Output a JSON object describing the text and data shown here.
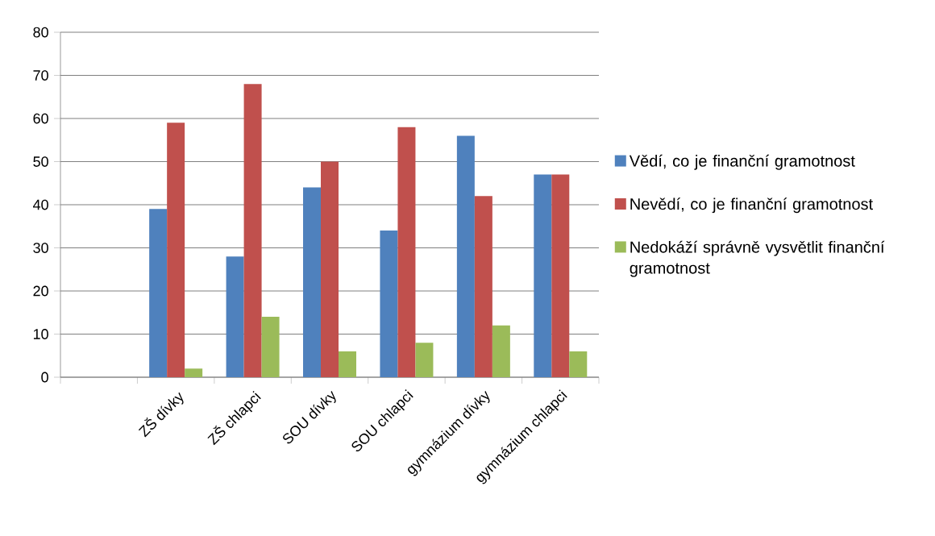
{
  "chart_data": {
    "type": "bar",
    "categories": [
      null,
      "ZŠ dívky",
      "ZŠ chlapci",
      "SOU dívky",
      "SOU chlapci",
      "gymnázium dívky",
      "gymnázium chlapci"
    ],
    "series": [
      {
        "name": "Vědí, co je finanční gramotnost",
        "color": "#4f81bd",
        "values": [
          null,
          39,
          28,
          44,
          34,
          56,
          47
        ]
      },
      {
        "name": "Nevědí, co je finanční gramotnost",
        "color": "#c0504d",
        "values": [
          null,
          59,
          68,
          50,
          58,
          42,
          47
        ]
      },
      {
        "name": "Nedokáží správně vysvětlit finanční gramotnost",
        "color": "#9bbb59",
        "values": [
          null,
          2,
          14,
          6,
          8,
          12,
          6
        ]
      }
    ],
    "ylim": [
      0,
      80
    ],
    "yticks": [
      0,
      10,
      20,
      30,
      40,
      50,
      60,
      70,
      80
    ],
    "grid": "y",
    "legend": "right"
  }
}
